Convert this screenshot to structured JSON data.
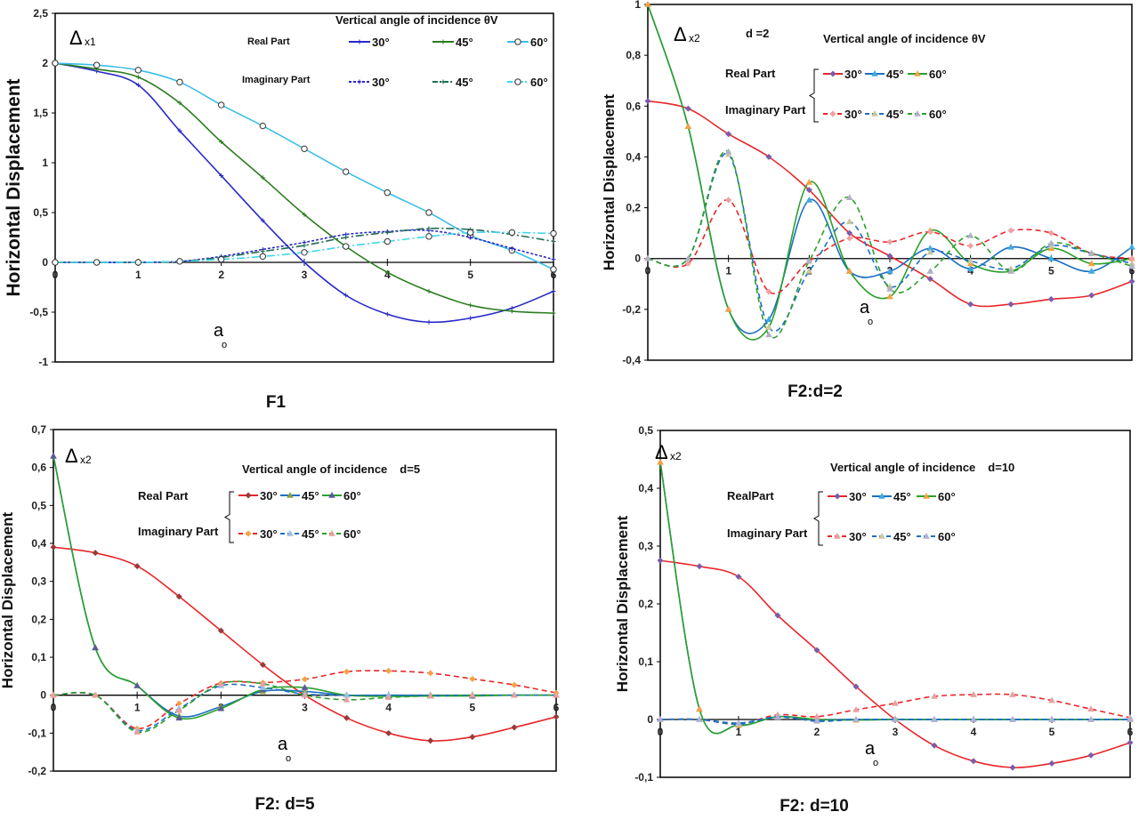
{
  "chart_data": [
    {
      "type": "line",
      "title": "F1",
      "ylabel": "Horizontal Displacement",
      "xlabel": "a",
      "xlabel_sub": "o",
      "annotation": "Δ",
      "annotation_sub": "x1",
      "legend_title": "Vertical angle of incidence θV",
      "legend_extra": "",
      "legend_real": "Real Part",
      "legend_imag": "Imaginary Part",
      "xlim": [
        0,
        6
      ],
      "ylim": [
        -1,
        2.5
      ],
      "xticks": [
        {
          "v": 0,
          "label": "0"
        },
        {
          "v": 1,
          "label": "1"
        },
        {
          "v": 2,
          "label": "2"
        },
        {
          "v": 3,
          "label": "3"
        },
        {
          "v": 4,
          "label": "4"
        },
        {
          "v": 5,
          "label": "5"
        },
        {
          "v": 6,
          "label": "6"
        }
      ],
      "yticks": [
        {
          "v": 2.5,
          "label": "2,5"
        },
        {
          "v": 2,
          "label": "2"
        },
        {
          "v": 1.5,
          "label": "1,5"
        },
        {
          "v": 1,
          "label": "1"
        },
        {
          "v": 0.5,
          "label": "0,5"
        },
        {
          "v": 0,
          "label": "0"
        },
        {
          "v": -0.5,
          "label": "-0,5"
        },
        {
          "v": -1,
          "label": "-1"
        }
      ],
      "x": [
        0,
        0.5,
        1,
        1.5,
        2,
        2.5,
        3,
        3.5,
        4,
        4.5,
        5,
        5.5,
        6
      ],
      "series": [
        {
          "name": "30°",
          "part": "real",
          "color": "#2828c8",
          "dash": "",
          "marker": "plus",
          "values": [
            2,
            1.92,
            1.78,
            1.32,
            0.87,
            0.42,
            0,
            -0.33,
            -0.52,
            -0.6,
            -0.56,
            -0.46,
            -0.29
          ]
        },
        {
          "name": "45°",
          "part": "real",
          "color": "#2a7d1e",
          "dash": "",
          "marker": "plus",
          "values": [
            2,
            1.94,
            1.86,
            1.6,
            1.21,
            0.85,
            0.48,
            0.16,
            -0.1,
            -0.29,
            -0.43,
            -0.49,
            -0.51
          ]
        },
        {
          "name": "60°",
          "part": "real",
          "color": "#3cbde6",
          "dash": "",
          "marker": "circle",
          "values": [
            2,
            1.98,
            1.93,
            1.81,
            1.58,
            1.37,
            1.14,
            0.91,
            0.7,
            0.5,
            0.27,
            0.12,
            -0.07
          ]
        },
        {
          "name": "30°",
          "part": "imag",
          "color": "#2828c8",
          "dash": "3,2",
          "marker": "plus",
          "values": [
            0,
            0,
            0,
            0.01,
            0.06,
            0.13,
            0.2,
            0.28,
            0.31,
            0.32,
            0.25,
            0.14,
            0.03
          ]
        },
        {
          "name": "45°",
          "part": "imag",
          "color": "#1f6b55",
          "dash": "9,3,2,3",
          "marker": "plus",
          "values": [
            0,
            0,
            0,
            0.01,
            0.05,
            0.11,
            0.17,
            0.25,
            0.3,
            0.34,
            0.33,
            0.28,
            0.21
          ]
        },
        {
          "name": "60°",
          "part": "imag",
          "color": "#3fd6ec",
          "dash": "9,3,2,3",
          "marker": "circle",
          "values": [
            0,
            0,
            0,
            0.01,
            0.03,
            0.06,
            0.1,
            0.16,
            0.21,
            0.26,
            0.3,
            0.3,
            0.29
          ]
        }
      ]
    },
    {
      "type": "line",
      "title": "F2:d=2",
      "ylabel": "Horizontal Displacement",
      "xlabel": "a",
      "xlabel_sub": "o",
      "annotation": "Δ",
      "annotation_sub": "x2",
      "legend_title": "Vertical angle of incidence θV",
      "legend_extra": "d =2",
      "legend_real": "Real Part",
      "legend_imag": "Imaginary Part",
      "xlim": [
        0,
        6
      ],
      "ylim": [
        -0.4,
        1
      ],
      "xticks": [
        {
          "v": 0,
          "label": "0"
        },
        {
          "v": 1,
          "label": "1"
        },
        {
          "v": 2,
          "label": "2"
        },
        {
          "v": 3,
          "label": "3"
        },
        {
          "v": 4,
          "label": "4"
        },
        {
          "v": 5,
          "label": "5"
        },
        {
          "v": 6,
          "label": "6"
        }
      ],
      "yticks": [
        {
          "v": 1,
          "label": "1"
        },
        {
          "v": 0.8,
          "label": "0,8"
        },
        {
          "v": 0.6,
          "label": "0,6"
        },
        {
          "v": 0.4,
          "label": "0,4"
        },
        {
          "v": 0.2,
          "label": "0,2"
        },
        {
          "v": 0,
          "label": "0"
        },
        {
          "v": -0.2,
          "label": "-0,2"
        },
        {
          "v": -0.4,
          "label": "-0,4"
        }
      ],
      "x": [
        0,
        0.5,
        1,
        1.5,
        2,
        2.5,
        3,
        3.5,
        4,
        4.5,
        5,
        5.5,
        6
      ],
      "series": [
        {
          "name": "30°",
          "part": "real",
          "color": "#e8262a",
          "dash": "",
          "marker": "diamond",
          "mcolor": "#7b5ca8",
          "values": [
            0.62,
            0.59,
            0.49,
            0.4,
            0.27,
            0.1,
            0.01,
            -0.08,
            -0.18,
            -0.18,
            -0.16,
            -0.145,
            -0.09
          ]
        },
        {
          "name": "45°",
          "part": "real",
          "color": "#1c6fc2",
          "dash": "",
          "marker": "triangle",
          "mcolor": "#3fa9e0",
          "values": [
            1,
            0.52,
            -0.2,
            -0.24,
            0.23,
            -0.05,
            -0.05,
            0.04,
            -0.04,
            0.045,
            0,
            -0.05,
            0.045
          ]
        },
        {
          "name": "60°",
          "part": "real",
          "color": "#2ca02c",
          "dash": "",
          "marker": "triangle",
          "mcolor": "#f5a142",
          "values": [
            1,
            0.52,
            -0.2,
            -0.27,
            0.3,
            -0.05,
            -0.15,
            0.11,
            -0.02,
            -0.05,
            0.04,
            -0.02,
            0
          ]
        },
        {
          "name": "30°",
          "part": "imag",
          "color": "#e8262a",
          "dash": "6,4",
          "marker": "diamond",
          "mcolor": "#f0a0a0",
          "values": [
            0,
            -0.02,
            0.23,
            -0.13,
            -0.01,
            0.08,
            0.065,
            0.105,
            0.05,
            0.11,
            0.1,
            0.02,
            0
          ]
        },
        {
          "name": "45°",
          "part": "imag",
          "color": "#1c6fc2",
          "dash": "6,4",
          "marker": "triangle",
          "mcolor": "#c8c8a0",
          "values": [
            0,
            0,
            0.41,
            -0.27,
            -0.05,
            0.145,
            -0.11,
            0.025,
            -0.01,
            -0.04,
            0.05,
            0.02,
            -0.02
          ]
        },
        {
          "name": "60°",
          "part": "imag",
          "color": "#2ca02c",
          "dash": "6,4",
          "marker": "triangle",
          "mcolor": "#b0b0c8",
          "values": [
            0,
            0,
            0.42,
            -0.3,
            -0.01,
            0.24,
            -0.12,
            -0.05,
            0.09,
            -0.05,
            0.06,
            0.02,
            -0.03
          ]
        }
      ]
    },
    {
      "type": "line",
      "title": "F2: d=5",
      "ylabel": "Horizontal Displacement",
      "xlabel": "a",
      "xlabel_sub": "o",
      "annotation": "Δ",
      "annotation_sub": "x2",
      "legend_title": "Vertical angle of incidence",
      "legend_extra": "d=5",
      "legend_real": "Real Part",
      "legend_imag": "Imaginary Part",
      "xlim": [
        0,
        6
      ],
      "ylim": [
        -0.2,
        0.7
      ],
      "xticks": [
        {
          "v": 0,
          "label": "0"
        },
        {
          "v": 1,
          "label": "1"
        },
        {
          "v": 2,
          "label": "2"
        },
        {
          "v": 3,
          "label": "3"
        },
        {
          "v": 4,
          "label": "4"
        },
        {
          "v": 5,
          "label": "5"
        },
        {
          "v": 6,
          "label": "6"
        }
      ],
      "yticks": [
        {
          "v": 0.7,
          "label": "0,7"
        },
        {
          "v": 0.6,
          "label": "0,6"
        },
        {
          "v": 0.5,
          "label": "0,5"
        },
        {
          "v": 0.4,
          "label": "0,4"
        },
        {
          "v": 0.3,
          "label": "0,3"
        },
        {
          "v": 0.2,
          "label": "0,2"
        },
        {
          "v": 0.1,
          "label": "0,1"
        },
        {
          "v": 0,
          "label": "0"
        },
        {
          "v": -0.1,
          "label": "-0,1"
        },
        {
          "v": -0.2,
          "label": "-0,2"
        }
      ],
      "x": [
        0,
        0.5,
        1,
        1.5,
        2,
        2.5,
        3,
        3.5,
        4,
        4.5,
        5,
        5.5,
        6
      ],
      "series": [
        {
          "name": "30°",
          "part": "real",
          "color": "#e8262a",
          "dash": "",
          "marker": "diamond",
          "mcolor": "#9a3a3a",
          "values": [
            0.39,
            0.375,
            0.34,
            0.26,
            0.17,
            0.08,
            0,
            -0.06,
            -0.1,
            -0.12,
            -0.11,
            -0.085,
            -0.057
          ]
        },
        {
          "name": "45°",
          "part": "real",
          "color": "#1c6fc2",
          "dash": "",
          "marker": "triangle",
          "mcolor": "#8aa040",
          "values": [
            0.63,
            0.125,
            0.025,
            -0.055,
            -0.03,
            0.01,
            0.01,
            0,
            0,
            0,
            0,
            0,
            0
          ]
        },
        {
          "name": "60°",
          "part": "real",
          "color": "#2ca02c",
          "dash": "",
          "marker": "triangle",
          "mcolor": "#5a5a9a",
          "values": [
            0.63,
            0.125,
            0.025,
            -0.06,
            -0.035,
            0.015,
            0.02,
            0,
            -0.003,
            -0.002,
            -0.002,
            0,
            0
          ]
        },
        {
          "name": "30°",
          "part": "imag",
          "color": "#e8262a",
          "dash": "6,4",
          "marker": "diamond",
          "mcolor": "#f5a142",
          "values": [
            0,
            0,
            -0.088,
            -0.022,
            0.032,
            0.033,
            0.042,
            0.062,
            0.064,
            0.058,
            0.043,
            0.027,
            0.006
          ]
        },
        {
          "name": "45°",
          "part": "imag",
          "color": "#1c6fc2",
          "dash": "6,4",
          "marker": "triangle",
          "mcolor": "#9ac0e8",
          "values": [
            0,
            0,
            -0.093,
            -0.035,
            0.025,
            0.02,
            0.003,
            0,
            0,
            -0.002,
            0,
            0,
            0
          ]
        },
        {
          "name": "60°",
          "part": "imag",
          "color": "#2ca02c",
          "dash": "6,4",
          "marker": "triangle",
          "mcolor": "#e8a0a0",
          "values": [
            0,
            0,
            -0.097,
            -0.04,
            0.03,
            0.03,
            0,
            -0.012,
            -0.006,
            -0.002,
            0,
            0,
            0
          ]
        }
      ]
    },
    {
      "type": "line",
      "title": "F2: d=10",
      "ylabel": "Horizontal Displacement",
      "xlabel": "a",
      "xlabel_sub": "o",
      "annotation": "Δ",
      "annotation_sub": "x2",
      "legend_title": "Vertical angle of incidence",
      "legend_extra": "d=10",
      "legend_real": "RealPart",
      "legend_imag": "Imaginary Part",
      "xlim": [
        0,
        6
      ],
      "ylim": [
        -0.1,
        0.5
      ],
      "xticks": [
        {
          "v": 0,
          "label": "0"
        },
        {
          "v": 1,
          "label": "1"
        },
        {
          "v": 2,
          "label": "2"
        },
        {
          "v": 3,
          "label": "3"
        },
        {
          "v": 4,
          "label": "4"
        },
        {
          "v": 5,
          "label": "5"
        },
        {
          "v": 6,
          "label": "6"
        }
      ],
      "yticks": [
        {
          "v": 0.5,
          "label": "0,5"
        },
        {
          "v": 0.4,
          "label": "0,4"
        },
        {
          "v": 0.3,
          "label": "0,3"
        },
        {
          "v": 0.2,
          "label": "0,2"
        },
        {
          "v": 0.1,
          "label": "0,1"
        },
        {
          "v": 0,
          "label": "0"
        },
        {
          "v": -0.1,
          "label": "-0,1"
        }
      ],
      "x": [
        0,
        0.5,
        1,
        1.5,
        2,
        2.5,
        3,
        3.5,
        4,
        4.5,
        5,
        5.5,
        6
      ],
      "series": [
        {
          "name": "30°",
          "part": "real",
          "color": "#e8262a",
          "dash": "",
          "marker": "diamond",
          "mcolor": "#7b5ca8",
          "values": [
            0.275,
            0.265,
            0.247,
            0.18,
            0.12,
            0.057,
            0,
            -0.045,
            -0.072,
            -0.083,
            -0.076,
            -0.062,
            -0.04
          ]
        },
        {
          "name": "45°",
          "part": "real",
          "color": "#1c6fc2",
          "dash": "",
          "marker": "triangle",
          "mcolor": "#3fa9e0",
          "values": [
            0.445,
            0.018,
            -0.01,
            0.005,
            0,
            0,
            0,
            0,
            0,
            0,
            0,
            0,
            0
          ]
        },
        {
          "name": "60°",
          "part": "real",
          "color": "#2ca02c",
          "dash": "",
          "marker": "triangle",
          "mcolor": "#f5a142",
          "values": [
            0.445,
            0.018,
            -0.01,
            0.005,
            0,
            -0.001,
            0,
            0,
            0,
            0,
            0,
            0,
            0
          ]
        },
        {
          "name": "30°",
          "part": "imag",
          "color": "#e8262a",
          "dash": "6,4",
          "marker": "triangle",
          "mcolor": "#e8a0a0",
          "values": [
            0,
            0,
            -0.008,
            0.008,
            0.005,
            0.017,
            0.028,
            0.04,
            0.043,
            0.043,
            0.033,
            0.018,
            0.003
          ]
        },
        {
          "name": "45°",
          "part": "imag",
          "color": "#1c6fc2",
          "dash": "6,4",
          "marker": "triangle",
          "mcolor": "#c8c8a0",
          "values": [
            0,
            0,
            -0.008,
            0.005,
            -0.003,
            0,
            0,
            0,
            0,
            0,
            0,
            0,
            0
          ]
        },
        {
          "name": "60°",
          "part": "imag",
          "color": "#1c6fc2",
          "dash": "6,4",
          "marker": "triangle",
          "mcolor": "#b0b0d8",
          "values": [
            0,
            0,
            -0.006,
            0.004,
            -0.002,
            0,
            0,
            0,
            0,
            0,
            0,
            0,
            0
          ]
        }
      ]
    }
  ]
}
